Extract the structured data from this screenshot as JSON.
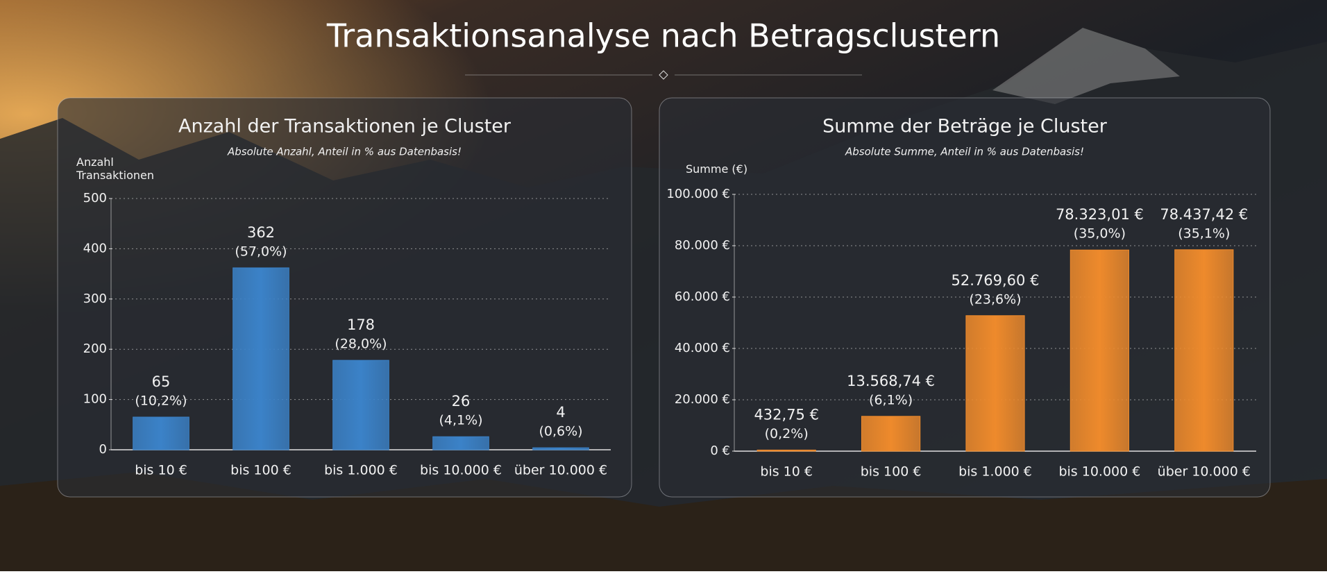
{
  "title": "Transaktionsanalyse nach Betragsclustern",
  "chart_data": [
    {
      "type": "bar",
      "title": "Anzahl der Transaktionen je Cluster",
      "subtitle": "Absolute Anzahl, Anteil in % aus Datenbasis!",
      "y_label": "Anzahl Transaktionen",
      "categories": [
        "bis 10 €",
        "bis 100 €",
        "bis 1.000 €",
        "bis 10.000 €",
        "über 10.000 €"
      ],
      "values": [
        65,
        362,
        178,
        26,
        4
      ],
      "share_labels": [
        "(10,2%)",
        "(57,0%)",
        "(28,0%)",
        "(4,1%)",
        "(0,6%)"
      ],
      "color": "#3b82c8",
      "ylim": [
        0,
        500
      ],
      "yticks": [
        0,
        100,
        200,
        300,
        400,
        500
      ],
      "grid": true
    },
    {
      "type": "bar",
      "title": "Summe der Beträge je Cluster",
      "subtitle": "Absolute Summe, Anteil in % aus Datenbasis!",
      "y_label": "Summe (€)",
      "categories": [
        "bis 10 €",
        "bis 100 €",
        "bis 1.000 €",
        "bis 10.000 €",
        "über 10.000 €"
      ],
      "values": [
        432.75,
        13568.74,
        52769.6,
        78323.01,
        78437.42
      ],
      "value_labels": [
        "432,75 €",
        "13.568,74 €",
        "52.769,60 €",
        "78.323,01 €",
        "78.437,42 €"
      ],
      "share_labels": [
        "(0,2%)",
        "(6,1%)",
        "(23,6%)",
        "(35,0%)",
        "(35,1%)"
      ],
      "color": "#ee8a2c",
      "ylim": [
        0,
        100000
      ],
      "yticks": [
        {
          "value": 0,
          "label": "0 €"
        },
        {
          "value": 20000,
          "label": "20.000 €"
        },
        {
          "value": 40000,
          "label": "40.000 €"
        },
        {
          "value": 60000,
          "label": "60.000 €"
        },
        {
          "value": 80000,
          "label": "80.000 €"
        },
        {
          "value": 100000,
          "label": "100.000 €"
        }
      ],
      "grid": true
    }
  ]
}
